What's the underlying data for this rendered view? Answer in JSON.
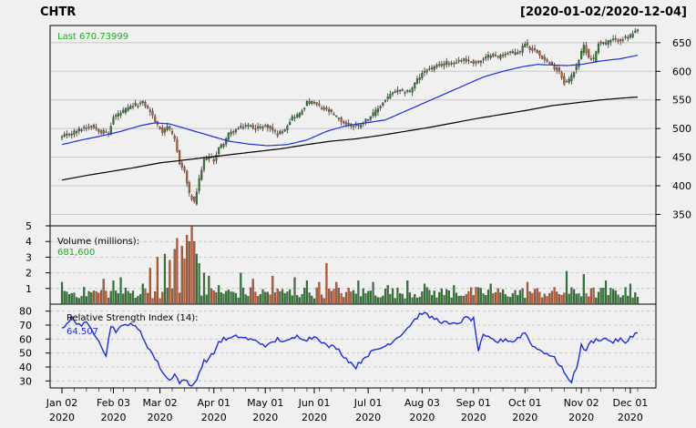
{
  "header": {
    "symbol": "CHTR",
    "date_range": "[2020-01-02/2020-12-04]"
  },
  "colors": {
    "background": "#f0f0f0",
    "price_grid": "#c8c8c8",
    "up_candle": "#2e7d32",
    "down_candle": "#c05a2e",
    "last_label": "#22aa22",
    "ma50": "#1a2edc",
    "ma200": "#000000",
    "rsi_line": "#1a2edc"
  },
  "chart_data": [
    {
      "type": "candlestick",
      "title": "",
      "last_label": "Last 670.73999",
      "ylim": [
        330,
        680
      ],
      "yticks": [
        350,
        400,
        450,
        500,
        550,
        600,
        650
      ],
      "x_ticks": [
        {
          "label": "Jan 02",
          "year": "2020",
          "index": 0
        },
        {
          "label": "Feb 03",
          "year": "2020",
          "index": 21
        },
        {
          "label": "Mar 02",
          "year": "2020",
          "index": 40
        },
        {
          "label": "Apr 01",
          "year": "2020",
          "index": 62
        },
        {
          "label": "May 01",
          "year": "2020",
          "index": 83
        },
        {
          "label": "Jun 01",
          "year": "2020",
          "index": 103
        },
        {
          "label": "Jul 01",
          "year": "2020",
          "index": 125
        },
        {
          "label": "Aug 03",
          "year": "2020",
          "index": 147
        },
        {
          "label": "Sep 01",
          "year": "2020",
          "index": 168
        },
        {
          "label": "Oct 01",
          "year": "2020",
          "index": 189
        },
        {
          "label": "Nov 02",
          "year": "2020",
          "index": 212
        },
        {
          "label": "Dec 01",
          "year": "2020",
          "index": 232
        }
      ],
      "n_sessions": 236,
      "close_keypoints": [
        [
          0,
          485
        ],
        [
          4,
          492
        ],
        [
          8,
          500
        ],
        [
          12,
          505
        ],
        [
          16,
          495
        ],
        [
          19,
          490
        ],
        [
          21,
          520
        ],
        [
          25,
          530
        ],
        [
          29,
          540
        ],
        [
          33,
          545
        ],
        [
          36,
          530
        ],
        [
          39,
          505
        ],
        [
          41,
          495
        ],
        [
          43,
          505
        ],
        [
          46,
          480
        ],
        [
          48,
          440
        ],
        [
          50,
          425
        ],
        [
          52,
          385
        ],
        [
          54,
          370
        ],
        [
          56,
          410
        ],
        [
          58,
          445
        ],
        [
          60,
          450
        ],
        [
          62,
          445
        ],
        [
          64,
          465
        ],
        [
          66,
          475
        ],
        [
          68,
          490
        ],
        [
          72,
          500
        ],
        [
          76,
          505
        ],
        [
          80,
          500
        ],
        [
          84,
          505
        ],
        [
          88,
          490
        ],
        [
          91,
          500
        ],
        [
          94,
          520
        ],
        [
          97,
          525
        ],
        [
          100,
          545
        ],
        [
          103,
          545
        ],
        [
          106,
          535
        ],
        [
          109,
          530
        ],
        [
          112,
          520
        ],
        [
          115,
          510
        ],
        [
          118,
          505
        ],
        [
          121,
          505
        ],
        [
          124,
          515
        ],
        [
          127,
          525
        ],
        [
          130,
          540
        ],
        [
          133,
          555
        ],
        [
          136,
          565
        ],
        [
          139,
          565
        ],
        [
          142,
          565
        ],
        [
          145,
          585
        ],
        [
          148,
          600
        ],
        [
          151,
          605
        ],
        [
          154,
          610
        ],
        [
          157,
          615
        ],
        [
          160,
          615
        ],
        [
          163,
          620
        ],
        [
          166,
          618
        ],
        [
          169,
          615
        ],
        [
          172,
          620
        ],
        [
          175,
          630
        ],
        [
          178,
          625
        ],
        [
          181,
          632
        ],
        [
          184,
          632
        ],
        [
          187,
          635
        ],
        [
          189,
          650
        ],
        [
          191,
          640
        ],
        [
          194,
          635
        ],
        [
          197,
          620
        ],
        [
          200,
          610
        ],
        [
          203,
          600
        ],
        [
          205,
          580
        ],
        [
          207,
          585
        ],
        [
          209,
          600
        ],
        [
          211,
          620
        ],
        [
          213,
          645
        ],
        [
          215,
          625
        ],
        [
          217,
          620
        ],
        [
          219,
          650
        ],
        [
          222,
          650
        ],
        [
          225,
          655
        ],
        [
          228,
          655
        ],
        [
          231,
          660
        ],
        [
          233,
          665
        ],
        [
          235,
          670.74
        ]
      ],
      "ma50_keypoints": [
        [
          0,
          472
        ],
        [
          8,
          480
        ],
        [
          16,
          487
        ],
        [
          24,
          495
        ],
        [
          32,
          505
        ],
        [
          38,
          510
        ],
        [
          44,
          508
        ],
        [
          52,
          498
        ],
        [
          60,
          488
        ],
        [
          68,
          478
        ],
        [
          76,
          473
        ],
        [
          84,
          470
        ],
        [
          92,
          472
        ],
        [
          100,
          480
        ],
        [
          108,
          495
        ],
        [
          116,
          505
        ],
        [
          124,
          510
        ],
        [
          132,
          515
        ],
        [
          140,
          530
        ],
        [
          148,
          545
        ],
        [
          156,
          560
        ],
        [
          164,
          575
        ],
        [
          172,
          590
        ],
        [
          180,
          600
        ],
        [
          188,
          608
        ],
        [
          194,
          612
        ],
        [
          200,
          611
        ],
        [
          206,
          610
        ],
        [
          212,
          612
        ],
        [
          220,
          618
        ],
        [
          228,
          622
        ],
        [
          235,
          628
        ]
      ],
      "ma200_keypoints": [
        [
          0,
          410
        ],
        [
          10,
          418
        ],
        [
          20,
          425
        ],
        [
          30,
          432
        ],
        [
          40,
          440
        ],
        [
          50,
          445
        ],
        [
          60,
          450
        ],
        [
          70,
          455
        ],
        [
          80,
          460
        ],
        [
          90,
          465
        ],
        [
          100,
          472
        ],
        [
          110,
          478
        ],
        [
          120,
          482
        ],
        [
          130,
          488
        ],
        [
          140,
          495
        ],
        [
          150,
          502
        ],
        [
          160,
          510
        ],
        [
          170,
          518
        ],
        [
          180,
          525
        ],
        [
          190,
          532
        ],
        [
          200,
          540
        ],
        [
          210,
          545
        ],
        [
          220,
          550
        ],
        [
          228,
          553
        ],
        [
          235,
          555
        ]
      ]
    },
    {
      "type": "bar",
      "label": "Volume (millions):",
      "value_label": "681,600",
      "ylim": [
        0,
        5
      ],
      "yticks": [
        1,
        2,
        3,
        4,
        5
      ],
      "spikes": [
        [
          0,
          1.4
        ],
        [
          17,
          1.6
        ],
        [
          21,
          1.5
        ],
        [
          24,
          1.7
        ],
        [
          33,
          1.3
        ],
        [
          36,
          2.3
        ],
        [
          39,
          3.0
        ],
        [
          42,
          3.2
        ],
        [
          44,
          2.8
        ],
        [
          46,
          3.5
        ],
        [
          47,
          4.2
        ],
        [
          49,
          3.7
        ],
        [
          50,
          2.9
        ],
        [
          51,
          4.4
        ],
        [
          52,
          4.0
        ],
        [
          53,
          5.0
        ],
        [
          54,
          4.0
        ],
        [
          55,
          3.2
        ],
        [
          56,
          2.6
        ],
        [
          58,
          2.0
        ],
        [
          60,
          1.8
        ],
        [
          64,
          1.2
        ],
        [
          73,
          2.0
        ],
        [
          78,
          1.6
        ],
        [
          86,
          1.8
        ],
        [
          95,
          1.7
        ],
        [
          100,
          1.5
        ],
        [
          105,
          1.4
        ],
        [
          108,
          2.6
        ],
        [
          112,
          1.4
        ],
        [
          121,
          1.5
        ],
        [
          127,
          1.4
        ],
        [
          133,
          1.2
        ],
        [
          141,
          1.5
        ],
        [
          148,
          1.3
        ],
        [
          160,
          1.2
        ],
        [
          175,
          1.3
        ],
        [
          190,
          1.4
        ],
        [
          206,
          2.1
        ],
        [
          213,
          1.9
        ],
        [
          222,
          1.5
        ],
        [
          232,
          1.3
        ]
      ]
    },
    {
      "type": "line",
      "label": "Relative Strength Index (14):",
      "value_label": "64.507",
      "ylim": [
        25,
        85
      ],
      "yticks": [
        30,
        40,
        50,
        60,
        70,
        80
      ],
      "keypoints": [
        [
          0,
          68
        ],
        [
          2,
          70
        ],
        [
          4,
          75
        ],
        [
          6,
          72
        ],
        [
          8,
          70
        ],
        [
          10,
          71
        ],
        [
          12,
          67
        ],
        [
          15,
          60
        ],
        [
          18,
          48
        ],
        [
          20,
          70
        ],
        [
          22,
          66
        ],
        [
          24,
          68
        ],
        [
          26,
          70
        ],
        [
          28,
          72
        ],
        [
          30,
          68
        ],
        [
          32,
          65
        ],
        [
          34,
          58
        ],
        [
          36,
          52
        ],
        [
          38,
          46
        ],
        [
          40,
          40
        ],
        [
          42,
          34
        ],
        [
          44,
          30
        ],
        [
          46,
          36
        ],
        [
          48,
          28
        ],
        [
          50,
          32
        ],
        [
          52,
          26
        ],
        [
          54,
          28
        ],
        [
          56,
          36
        ],
        [
          58,
          44
        ],
        [
          60,
          46
        ],
        [
          62,
          50
        ],
        [
          64,
          58
        ],
        [
          66,
          60
        ],
        [
          68,
          60
        ],
        [
          72,
          62
        ],
        [
          76,
          60
        ],
        [
          80,
          58
        ],
        [
          84,
          55
        ],
        [
          88,
          60
        ],
        [
          92,
          58
        ],
        [
          96,
          62
        ],
        [
          100,
          60
        ],
        [
          104,
          62
        ],
        [
          108,
          55
        ],
        [
          112,
          54
        ],
        [
          116,
          46
        ],
        [
          120,
          40
        ],
        [
          124,
          48
        ],
        [
          128,
          52
        ],
        [
          132,
          55
        ],
        [
          136,
          60
        ],
        [
          140,
          66
        ],
        [
          144,
          74
        ],
        [
          147,
          79
        ],
        [
          150,
          76
        ],
        [
          153,
          74
        ],
        [
          156,
          72
        ],
        [
          159,
          70
        ],
        [
          162,
          72
        ],
        [
          165,
          75
        ],
        [
          168,
          74
        ],
        [
          170,
          52
        ],
        [
          172,
          62
        ],
        [
          175,
          60
        ],
        [
          178,
          58
        ],
        [
          181,
          60
        ],
        [
          184,
          58
        ],
        [
          187,
          62
        ],
        [
          189,
          65
        ],
        [
          191,
          58
        ],
        [
          193,
          54
        ],
        [
          195,
          52
        ],
        [
          198,
          50
        ],
        [
          201,
          46
        ],
        [
          204,
          40
        ],
        [
          206,
          32
        ],
        [
          208,
          30
        ],
        [
          210,
          40
        ],
        [
          212,
          55
        ],
        [
          214,
          52
        ],
        [
          216,
          58
        ],
        [
          219,
          60
        ],
        [
          222,
          60
        ],
        [
          225,
          58
        ],
        [
          228,
          60
        ],
        [
          230,
          56
        ],
        [
          232,
          62
        ],
        [
          235,
          64.5
        ]
      ]
    }
  ]
}
